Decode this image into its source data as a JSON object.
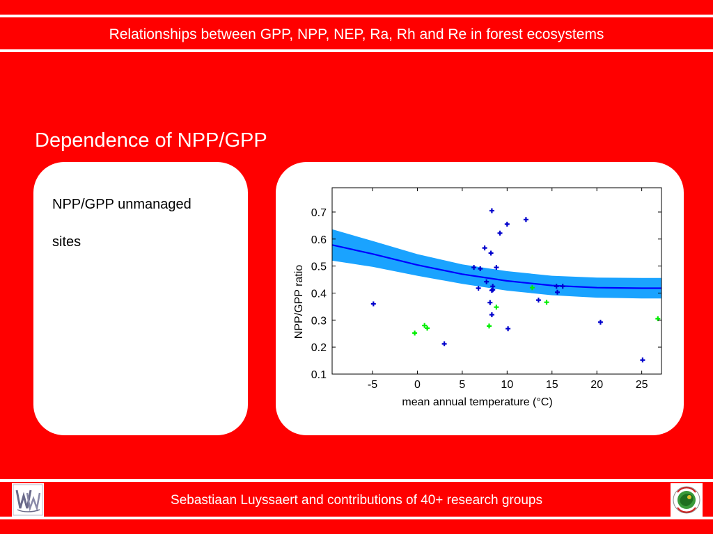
{
  "header": {
    "title": "Relationships between GPP, NPP, NEP, Ra, Rh and Re in forest ecosystems"
  },
  "section": {
    "title": "Dependence of NPP/GPP"
  },
  "left_panel": {
    "line1": "NPP/GPP unmanaged",
    "line2": "sites"
  },
  "footer": {
    "credit": "Sebastiaan Luyssaert and contributions of 40+ research groups"
  },
  "colors": {
    "background": "#ff0000",
    "blue_points": "#0000cc",
    "green_points": "#00ee00",
    "fit_line": "#0000ff",
    "confidence_band": "#1aa3ff"
  },
  "chart_data": {
    "type": "scatter",
    "xlabel": "mean annual temperature (°C)",
    "ylabel": "NPP/GPP ratio",
    "xlim": [
      -9.5,
      27.2
    ],
    "ylim": [
      0.1,
      0.79
    ],
    "xticks": [
      -5,
      0,
      5,
      10,
      15,
      20,
      25
    ],
    "yticks": [
      0.1,
      0.2,
      0.3,
      0.4,
      0.5,
      0.6,
      0.7
    ],
    "ytick_labels": [
      "0.1",
      "0.2",
      "0.3",
      "0.4",
      "0.5",
      "0.6",
      "0.7"
    ],
    "grid": false,
    "fit_curve": {
      "x": [
        -9.5,
        -5,
        0,
        5,
        10,
        15,
        20,
        25,
        27.2
      ],
      "y": [
        0.578,
        0.545,
        0.504,
        0.47,
        0.445,
        0.428,
        0.42,
        0.418,
        0.418
      ],
      "band_halfwidth": [
        0.058,
        0.048,
        0.04,
        0.036,
        0.036,
        0.036,
        0.037,
        0.038,
        0.038
      ]
    },
    "series": [
      {
        "color": "blue",
        "x": [
          -4.9,
          3.0,
          6.3,
          6.8,
          7.0,
          7.5,
          7.7,
          8.1,
          8.3,
          8.4,
          8.3,
          8.3,
          8.2,
          8.4,
          8.8,
          9.2,
          10.0,
          10.1,
          12.1,
          13.5,
          15.5,
          15.6,
          16.2,
          20.4,
          25.1
        ],
        "y": [
          0.36,
          0.212,
          0.495,
          0.418,
          0.49,
          0.567,
          0.442,
          0.365,
          0.32,
          0.425,
          0.41,
          0.705,
          0.548,
          0.412,
          0.495,
          0.622,
          0.655,
          0.268,
          0.672,
          0.374,
          0.425,
          0.403,
          0.425,
          0.292,
          0.152
        ]
      },
      {
        "color": "green",
        "x": [
          -0.3,
          0.8,
          1.1,
          8.0,
          8.8,
          12.8,
          14.4,
          26.8
        ],
        "y": [
          0.252,
          0.28,
          0.27,
          0.278,
          0.348,
          0.42,
          0.366,
          0.305
        ]
      }
    ]
  }
}
